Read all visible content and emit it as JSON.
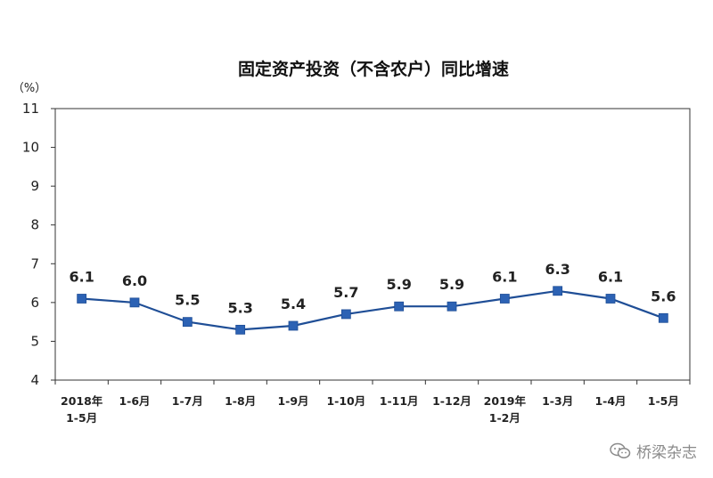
{
  "chart_data": {
    "type": "line",
    "title": "固定资产投资（不含农户）同比增速",
    "unit_label": "（%）",
    "ylim": [
      4,
      11
    ],
    "yticks": [
      4,
      5,
      6,
      7,
      8,
      9,
      10,
      11
    ],
    "grid": false,
    "categories": [
      [
        "2018年",
        "1-5月"
      ],
      [
        "1-6月"
      ],
      [
        "1-7月"
      ],
      [
        "1-8月"
      ],
      [
        "1-9月"
      ],
      [
        "1-10月"
      ],
      [
        "1-11月"
      ],
      [
        "1-12月"
      ],
      [
        "2019年",
        "1-2月"
      ],
      [
        "1-3月"
      ],
      [
        "1-4月"
      ],
      [
        "1-5月"
      ]
    ],
    "values": [
      6.1,
      6.0,
      5.5,
      5.3,
      5.4,
      5.7,
      5.9,
      5.9,
      6.1,
      6.3,
      6.1,
      5.6
    ],
    "data_labels": [
      "6.1",
      "6.0",
      "5.5",
      "5.3",
      "5.4",
      "5.7",
      "5.9",
      "5.9",
      "6.1",
      "6.3",
      "6.1",
      "5.6"
    ],
    "colors": {
      "line": "#1f4e96",
      "marker": "#2c62b4",
      "axis": "#333333"
    }
  },
  "watermark": {
    "text": "桥梁杂志",
    "icon": "wechat-icon"
  }
}
